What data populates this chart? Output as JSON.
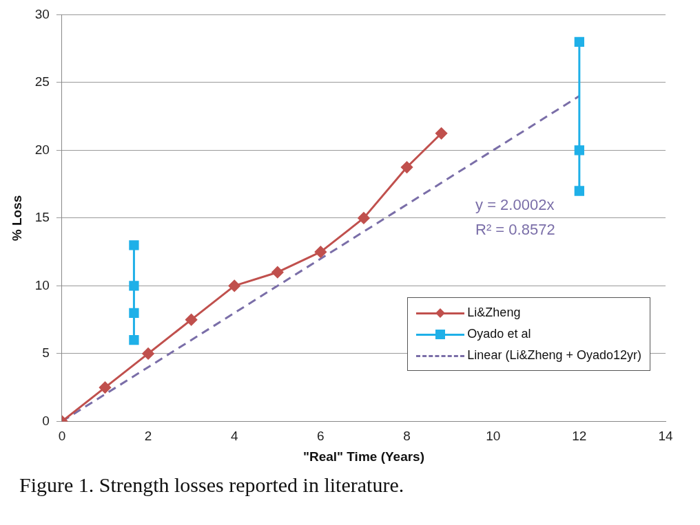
{
  "chart_data": {
    "type": "line",
    "xlabel": "\"Real\" Time (Years)",
    "ylabel": "% Loss",
    "xlim": [
      0,
      14
    ],
    "xticks": [
      0,
      2,
      4,
      6,
      8,
      10,
      12,
      14
    ],
    "ylim": [
      0,
      30
    ],
    "yticks": [
      0,
      5,
      10,
      15,
      20,
      25,
      30
    ],
    "grid": "y",
    "legend": "bottom right",
    "series": [
      {
        "name": "Li&Zheng",
        "color": "#c0504d",
        "marker": "diamond",
        "x": [
          0,
          1,
          2,
          3,
          4,
          5,
          6,
          7,
          8,
          8.8
        ],
        "values": [
          0,
          2.5,
          5,
          7.5,
          10,
          11,
          12.5,
          15,
          18.75,
          21.25
        ]
      },
      {
        "name": "Oyado et al",
        "color": "#1fb0e8",
        "marker": "square",
        "x": [
          1.67,
          1.67,
          1.67,
          1.67
        ],
        "values": [
          6,
          8,
          10,
          13
        ]
      },
      {
        "color": "#1fb0e8",
        "marker": "square",
        "x": [
          12,
          12,
          12
        ],
        "values": [
          28,
          20,
          17
        ]
      },
      {
        "name": "Linear (Li&Zheng + Oyado12yr)",
        "color": "#7a6ea8",
        "marker": "none",
        "line_style": "dashed",
        "x": [
          0,
          12
        ],
        "values": [
          0,
          24
        ]
      }
    ],
    "annotations": [
      "y = 2.0002x",
      "R² = 0.8572",
      "Figure 1. Strength losses reported in literature."
    ]
  }
}
